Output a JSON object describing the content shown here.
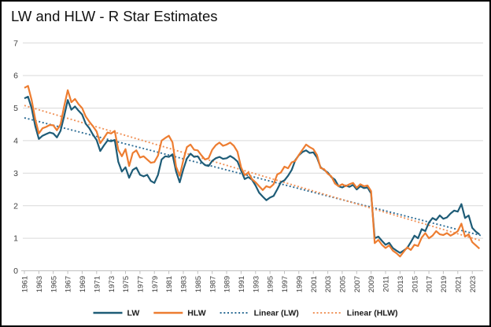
{
  "chart_data": {
    "type": "line",
    "title": "LW and HLW - R Star Estimates",
    "xlabel": "",
    "ylabel": "",
    "ylim": [
      0,
      7
    ],
    "yticks": [
      0,
      1,
      2,
      3,
      4,
      5,
      6,
      7
    ],
    "x_start": 1961.0,
    "x_step": 0.5,
    "xtick_labels": [
      "1961",
      "1963",
      "1965",
      "1967",
      "1969",
      "1971",
      "1973",
      "1975",
      "1977",
      "1979",
      "1981",
      "1983",
      "1985",
      "1987",
      "1989",
      "1991",
      "1993",
      "1995",
      "1997",
      "1999",
      "2001",
      "2003",
      "2005",
      "2007",
      "2009",
      "2011",
      "2013",
      "2015",
      "2017",
      "2019",
      "2021",
      "2023"
    ],
    "grid": "horizontal",
    "legend_position": "bottom",
    "colors": {
      "gridline": "#D9D9D9",
      "axis": "#BFBFBF",
      "tick_label": "#404040",
      "title_text": "#111111",
      "legend_text": "#1A1A1A"
    },
    "series": [
      {
        "name": "LW",
        "style": "solid",
        "color": "#1E5C77",
        "values": [
          5.3,
          5.35,
          5.0,
          4.45,
          4.05,
          4.15,
          4.2,
          4.25,
          4.22,
          4.1,
          4.3,
          4.75,
          5.25,
          4.95,
          5.05,
          4.92,
          4.8,
          4.52,
          4.38,
          4.18,
          4.02,
          3.68,
          3.85,
          4.0,
          3.98,
          4.02,
          3.35,
          3.05,
          3.18,
          2.86,
          3.1,
          3.17,
          2.95,
          2.9,
          2.95,
          2.76,
          2.7,
          2.95,
          3.42,
          3.52,
          3.5,
          3.58,
          3.05,
          2.72,
          3.12,
          3.45,
          3.6,
          3.5,
          3.52,
          3.35,
          3.25,
          3.22,
          3.38,
          3.46,
          3.5,
          3.44,
          3.46,
          3.53,
          3.46,
          3.36,
          3.08,
          2.82,
          2.88,
          2.8,
          2.62,
          2.4,
          2.28,
          2.17,
          2.25,
          2.3,
          2.5,
          2.72,
          2.78,
          2.92,
          3.1,
          3.4,
          3.55,
          3.65,
          3.7,
          3.62,
          3.64,
          3.48,
          3.18,
          3.1,
          3.02,
          2.88,
          2.8,
          2.6,
          2.56,
          2.62,
          2.58,
          2.64,
          2.5,
          2.6,
          2.54,
          2.56,
          2.38,
          1.0,
          1.05,
          0.92,
          0.8,
          0.86,
          0.7,
          0.62,
          0.55,
          0.62,
          0.7,
          0.88,
          1.08,
          1.0,
          1.28,
          1.22,
          1.48,
          1.62,
          1.56,
          1.7,
          1.6,
          1.64,
          1.76,
          1.85,
          1.82,
          2.05,
          1.62,
          1.7,
          1.32,
          1.2,
          1.12
        ]
      },
      {
        "name": "HLW",
        "style": "solid",
        "color": "#ED7D31",
        "values": [
          5.62,
          5.68,
          5.25,
          4.66,
          4.22,
          4.38,
          4.42,
          4.48,
          4.47,
          4.32,
          4.5,
          5.05,
          5.55,
          5.18,
          5.28,
          5.12,
          5.0,
          4.74,
          4.58,
          4.44,
          4.28,
          3.92,
          4.08,
          4.25,
          4.22,
          4.3,
          3.72,
          3.52,
          3.74,
          3.22,
          3.62,
          3.7,
          3.48,
          3.52,
          3.42,
          3.32,
          3.34,
          3.54,
          4.0,
          4.08,
          4.15,
          3.95,
          3.2,
          2.92,
          3.4,
          3.8,
          3.88,
          3.72,
          3.7,
          3.55,
          3.42,
          3.46,
          3.72,
          3.86,
          3.94,
          3.84,
          3.88,
          3.94,
          3.84,
          3.66,
          3.18,
          2.94,
          3.02,
          2.82,
          2.72,
          2.6,
          2.48,
          2.6,
          2.56,
          2.66,
          2.96,
          3.02,
          3.2,
          3.15,
          3.33,
          3.38,
          3.56,
          3.72,
          3.88,
          3.8,
          3.74,
          3.56,
          3.16,
          3.12,
          2.98,
          2.9,
          2.68,
          2.6,
          2.66,
          2.6,
          2.66,
          2.7,
          2.55,
          2.66,
          2.6,
          2.62,
          2.45,
          0.85,
          0.95,
          0.8,
          0.7,
          0.78,
          0.62,
          0.54,
          0.44,
          0.58,
          0.72,
          0.64,
          0.8,
          0.76,
          1.02,
          1.16,
          1.0,
          1.08,
          1.22,
          1.12,
          1.1,
          1.16,
          1.08,
          1.14,
          1.22,
          1.45,
          1.05,
          1.12,
          0.88,
          0.78,
          0.68
        ]
      },
      {
        "name": "Linear (LW)",
        "style": "dotted",
        "color": "#2F6E96",
        "x": [
          1961.0,
          2024.3
        ],
        "values": [
          4.7,
          1.08
        ]
      },
      {
        "name": "Linear (HLW)",
        "style": "dotted",
        "color": "#F0935A",
        "x": [
          1961.0,
          2024.3
        ],
        "values": [
          5.08,
          0.92
        ]
      }
    ]
  }
}
